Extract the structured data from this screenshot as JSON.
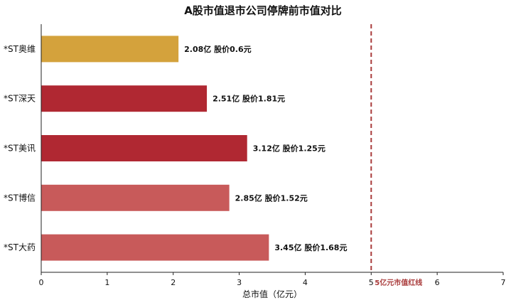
{
  "chart_data": {
    "type": "bar",
    "orientation": "horizontal",
    "title": "A股市值退市公司停牌前市值对比",
    "xlabel": "总市值（亿元）",
    "ylabel": "",
    "xlim": [
      0,
      7
    ],
    "xticks": [
      "0",
      "1",
      "2",
      "3",
      "4",
      "5",
      "6",
      "7"
    ],
    "grid": false,
    "categories": [
      "*ST奥维",
      "*ST深天",
      "*ST美讯",
      "*ST博信",
      "*ST大药"
    ],
    "values": [
      2.08,
      2.51,
      3.12,
      2.85,
      3.45
    ],
    "data_labels": [
      "2.08亿  股价0.6元",
      "2.51亿  股价1.81元",
      "3.12亿  股价1.25元",
      "2.85亿  股价1.52元",
      "3.45亿  股价1.68元"
    ],
    "bar_colors": [
      "#D4A23C",
      "#B02832",
      "#B02832",
      "#C85A5A",
      "#C85A5A"
    ],
    "reference_line": {
      "value": 5,
      "label": "5亿元市值红线",
      "color": "#A93B3B",
      "style": "dashed"
    }
  }
}
